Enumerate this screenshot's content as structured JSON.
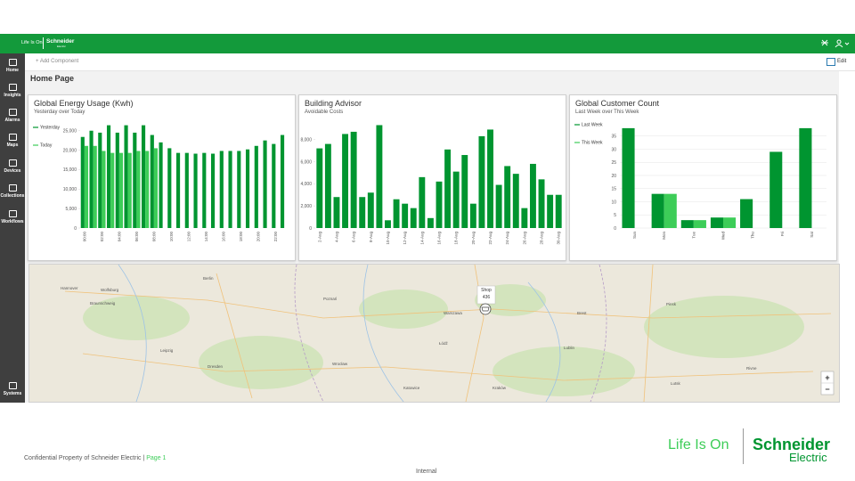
{
  "header": {
    "tagline": "Life Is On",
    "brand": "Schneider",
    "brand_sub": "Electric"
  },
  "nav": [
    "Home",
    "Insights",
    "Alarms",
    "Maps",
    "Devices",
    "Collections",
    "Workflows",
    "Systems"
  ],
  "toolbar": {
    "add": "+ Add Component",
    "edit": "Edit"
  },
  "page_title": "Home Page",
  "chart_data": [
    {
      "type": "bar",
      "title": "Global Energy Usage (Kwh)",
      "subtitle": "Yesterday over Today",
      "categories": [
        "00:00",
        null,
        "02:00",
        null,
        "04:00",
        null,
        "06:00",
        null,
        "08:00",
        null,
        "10:00",
        null,
        "12:00",
        null,
        "14:00",
        null,
        "16:00",
        null,
        "18:00",
        null,
        "20:00",
        null,
        "22:00",
        null
      ],
      "series": [
        {
          "name": "Yesterday",
          "color": "#009530",
          "values": [
            23400,
            25000,
            24500,
            26400,
            24500,
            26400,
            24500,
            26400,
            23900,
            22000,
            20500,
            19300,
            19300,
            19100,
            19300,
            19100,
            19800,
            19800,
            19800,
            20200,
            21100,
            22500,
            21600,
            23900
          ]
        },
        {
          "name": "Today",
          "color": "#3dcd58",
          "values": [
            21100,
            21100,
            19800,
            19300,
            19300,
            19300,
            19800,
            19800,
            20500,
            null,
            null,
            null,
            null,
            null,
            null,
            null,
            null,
            null,
            null,
            null,
            null,
            null,
            null,
            null
          ]
        }
      ],
      "ylim": [
        0,
        27000
      ],
      "yticks": [
        0,
        {
          "value": 5000,
          "label": "5,000"
        },
        {
          "value": 10000,
          "label": "10,000"
        },
        {
          "value": 15000,
          "label": "15,000"
        },
        {
          "value": 20000,
          "label": "20,000"
        },
        {
          "value": 25000,
          "label": "25,000"
        }
      ],
      "grid": false
    },
    {
      "type": "bar",
      "title": "Building Advisor",
      "subtitle": "Avoidable Costs",
      "categories": [
        "2-Aug",
        null,
        "4-Aug",
        null,
        "6-Aug",
        null,
        "8-Aug",
        null,
        "10-Aug",
        null,
        "12-Aug",
        null,
        "14-Aug",
        null,
        "16-Aug",
        null,
        "18-Aug",
        null,
        "20-Aug",
        null,
        "22-Aug",
        null,
        "24-Aug",
        null,
        "26-Aug",
        null,
        "28-Aug",
        null,
        "30-Aug"
      ],
      "series": [
        {
          "name": null,
          "color": "#009530",
          "values": [
            7200,
            7600,
            2800,
            8500,
            8700,
            2800,
            3200,
            9300,
            700,
            2600,
            2200,
            1800,
            4600,
            900,
            4200,
            7100,
            5100,
            6600,
            2200,
            8300,
            8900,
            3900,
            5600,
            4900,
            1800,
            5800,
            4400,
            3000,
            3000
          ]
        }
      ],
      "ylim": [
        0,
        9500
      ],
      "yticks": [
        0,
        {
          "value": 2000,
          "label": "2,000"
        },
        {
          "value": 4000,
          "label": "4,000"
        },
        {
          "value": 6000,
          "label": "6,000"
        },
        {
          "value": 8000,
          "label": "8,000"
        }
      ],
      "grid": false
    },
    {
      "type": "bar",
      "title": "Global Customer Count",
      "subtitle": "Last Week over This Week",
      "categories": [
        "Sun",
        "Mon",
        "Tue",
        "Wed",
        "Thu",
        "Fri",
        "Sat"
      ],
      "series": [
        {
          "name": "Last Week",
          "color": "#009530",
          "values": [
            38,
            13,
            3,
            4,
            11,
            29,
            38
          ]
        },
        {
          "name": "This Week",
          "color": "#3dcd58",
          "values": [
            null,
            13,
            3,
            4,
            null,
            null,
            null
          ]
        }
      ],
      "ylim": [
        0,
        40
      ],
      "yticks": [
        0,
        5,
        10,
        15,
        20,
        25,
        30,
        35
      ],
      "grid": true
    }
  ],
  "map": {
    "cities": [
      "Hannover",
      "Wolfsburg",
      "Braunschweig",
      "Berlin",
      "Leipzig",
      "Dresden",
      "Wrocław",
      "Poznań",
      "Łódź",
      "Kraków",
      "Lublin",
      "Brest",
      "Pinsk",
      "Lutsk",
      "Rivne",
      "Katowice",
      "Warszawa"
    ],
    "marker": "Shop",
    "marker_id": "436",
    "zoom_in": "+",
    "zoom_out": "−"
  },
  "footer": {
    "confidential": "Confidential  Property of Schneider  Electric |",
    "page": "Page 1",
    "classification": "Internal",
    "logo_tagline": "Life Is On",
    "logo_brand": "Schneider",
    "logo_sub": "Electric"
  }
}
